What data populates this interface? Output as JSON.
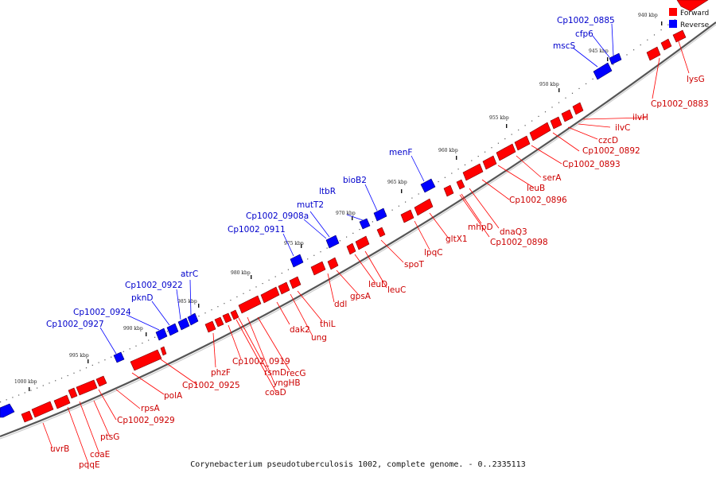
{
  "caption": "Corynebacterium pseudotuberculosis 1002, complete genome. - 0..2335113",
  "legend": [
    {
      "label": "Forward",
      "color": "#ff0000"
    },
    {
      "label": "Reverse",
      "color": "#0000ff"
    }
  ],
  "colors": {
    "forward": "#ff0000",
    "reverse": "#0000ff",
    "forward_label": "#cc0000",
    "reverse_label": "#0000cc",
    "backbone": "#555555"
  },
  "scale_labels": [
    "940 kbp",
    "945 kbp",
    "950 kbp",
    "955 kbp",
    "960 kbp",
    "965 kbp",
    "970 kbp",
    "975 kbp",
    "980 kbp",
    "985 kbp",
    "990 kbp",
    "995 kbp",
    "1000 kbp"
  ],
  "reverse_genes": [
    "Cp1002_0885",
    "cfp6",
    "mscS",
    "menF",
    "bioB2",
    "ltbR",
    "mutT2",
    "Cp1002_0908a",
    "Cp1002_0911",
    "atrC",
    "Cp1002_0922",
    "pknD",
    "Cp1002_0924",
    "Cp1002_0927"
  ],
  "forward_genes": [
    "lysG",
    "Cp1002_0883",
    "ilvH",
    "ilvC",
    "czcD",
    "Cp1002_0892",
    "Cp1002_0893",
    "serA",
    "leuB",
    "Cp1002_0896",
    "dnaQ3",
    "mhpD",
    "Cp1002_0898",
    "gltX1",
    "lpqC",
    "spoT",
    "leuC",
    "leuD",
    "gpsA",
    "ddl",
    "thiL",
    "ung",
    "dak2",
    "recG",
    "yngHB",
    "rsmD",
    "coaD",
    "Cp1002_0919",
    "phzF",
    "Cp1002_0925",
    "polA",
    "rpsA",
    "Cp1002_0929",
    "ptsG",
    "coaE",
    "pqqE",
    "uvrB"
  ]
}
